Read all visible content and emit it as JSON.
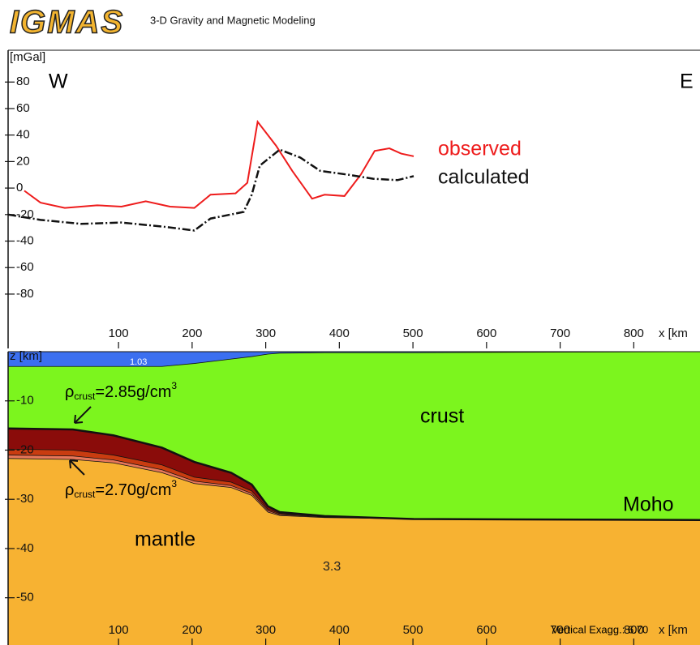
{
  "header": {
    "logo": "IGMAS",
    "title": "3-D Gravity and Magnetic Modeling"
  },
  "chart_data": [
    {
      "type": "line",
      "y_label": "[mGal]",
      "x_label": "x [km",
      "west": "W",
      "east": "E",
      "xlim": [
        -50,
        890
      ],
      "ylim": [
        -121,
        104
      ],
      "xticks": [
        100,
        200,
        300,
        400,
        500,
        600,
        700,
        800
      ],
      "yticks": [
        -80,
        -60,
        -40,
        -20,
        0,
        20,
        40,
        60,
        80
      ],
      "series": [
        {
          "name": "observed",
          "color": "#ee1c1c",
          "x": [
            -28,
            -6,
            27,
            71,
            104,
            137,
            170,
            203,
            225,
            259,
            275,
            289,
            314,
            336,
            363,
            380,
            407,
            429,
            448,
            468,
            484,
            501
          ],
          "values": [
            -2,
            -11,
            -15,
            -13,
            -14,
            -10,
            -14,
            -15,
            -5,
            -4,
            4,
            50,
            32,
            13,
            -8,
            -5,
            -6,
            10,
            28,
            30,
            26,
            24
          ]
        },
        {
          "name": "calculated",
          "color": "#111111",
          "x": [
            -50,
            -6,
            49,
            104,
            159,
            203,
            225,
            270,
            281,
            292,
            319,
            347,
            374,
            413,
            446,
            479,
            501
          ],
          "values": [
            -20,
            -24,
            -27,
            -26,
            -29,
            -32,
            -23,
            -18,
            -5,
            17,
            29,
            23,
            13,
            10,
            7,
            6,
            9
          ]
        }
      ]
    },
    {
      "type": "section",
      "y_label": "z [km]",
      "x_label": "x [km",
      "xlim": [
        -50,
        890
      ],
      "ylim": [
        -59.6,
        0
      ],
      "xticks": [
        100,
        200,
        300,
        400,
        500,
        600,
        700,
        800
      ],
      "yticks": [
        -10,
        -20,
        -30,
        -40,
        -50
      ],
      "x": [
        -50,
        38,
        93,
        159,
        203,
        253,
        281,
        303,
        319,
        380,
        501,
        890
      ],
      "interfaces": [
        [
          -3,
          -3,
          -3,
          -3,
          -2.4,
          -1.5,
          -1,
          -0.5,
          -0.3,
          -0.2,
          -0.2,
          0
        ],
        [
          -15.6,
          -15.8,
          -17,
          -19.5,
          -22.4,
          -24.6,
          -27,
          -31.4,
          -32.6,
          -33.4,
          -34,
          -34.2
        ],
        [
          -19.8,
          -20,
          -21,
          -23,
          -25.5,
          -26.5,
          -28.3,
          -32,
          -32.9,
          -33.5,
          -34,
          -34.2
        ],
        [
          -21,
          -21.2,
          -22,
          -24,
          -26.3,
          -27.2,
          -28.8,
          -32.3,
          -33.1,
          -33.6,
          -34,
          -34.2
        ],
        [
          -21.7,
          -21.9,
          -22.6,
          -24.6,
          -26.8,
          -27.6,
          -29.2,
          -32.6,
          -33.3,
          -33.7,
          -34,
          -34.2
        ]
      ],
      "layer_colors": [
        "#3b6ff0",
        "#7cf51e",
        "#8a0c0a",
        "#c93c10",
        "#e7775a",
        "#f7b232"
      ],
      "water_density": "1.03",
      "mantle_density": "3.3",
      "crust": "crust",
      "mantle": "mantle",
      "moho": "Moho",
      "upper_density": {
        "symbol": "ρ",
        "subscript": "crust",
        "text": "=2.85g/cm",
        "superscript": "3"
      },
      "lower_density": {
        "symbol": "ρ",
        "subscript": "crust",
        "text": "=2.70g/cm",
        "superscript": "3"
      },
      "exaggeration": "Vertical Exagg.:  6.70"
    }
  ]
}
